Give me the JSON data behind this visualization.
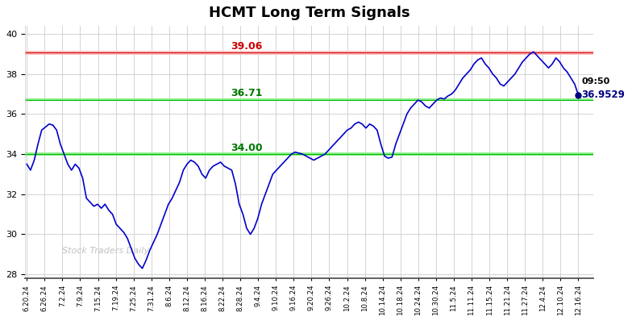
{
  "title": "HCMT Long Term Signals",
  "watermark": "Stock Traders Daily",
  "hline_red": 39.06,
  "hline_green1": 36.71,
  "hline_green2": 34.0,
  "hline_red_fill": "#ffc0c0",
  "hline_red_line": "#cc0000",
  "hline_green_fill": "#90ee90",
  "hline_green_line": "#00bb00",
  "label_red_value": "39.06",
  "label_green1_value": "36.71",
  "label_green2_value": "34.00",
  "last_time": "09:50",
  "last_price": "36.9529",
  "last_price_float": 36.9529,
  "dot_color": "#000080",
  "line_color": "#0000CC",
  "background_color": "#ffffff",
  "grid_color": "#cccccc",
  "ylim": [
    27.8,
    40.4
  ],
  "yticks": [
    28,
    30,
    32,
    34,
    36,
    38,
    40
  ],
  "x_labels": [
    "6.20.24",
    "6.26.24",
    "7.2.24",
    "7.9.24",
    "7.15.24",
    "7.19.24",
    "7.25.24",
    "7.31.24",
    "8.6.24",
    "8.12.24",
    "8.16.24",
    "8.22.24",
    "8.28.24",
    "9.4.24",
    "9.10.24",
    "9.16.24",
    "9.20.24",
    "9.26.24",
    "10.2.24",
    "10.8.24",
    "10.14.24",
    "10.18.24",
    "10.24.24",
    "10.30.24",
    "11.5.24",
    "11.11.24",
    "11.15.24",
    "11.21.24",
    "11.27.24",
    "12.4.24",
    "12.10.24",
    "12.16.24"
  ],
  "prices": [
    33.5,
    33.2,
    33.7,
    34.5,
    35.2,
    35.35,
    35.5,
    35.45,
    35.2,
    34.5,
    34.0,
    33.5,
    33.2,
    33.5,
    33.3,
    32.8,
    31.8,
    31.6,
    31.4,
    31.5,
    31.3,
    31.5,
    31.2,
    31.0,
    30.5,
    30.3,
    30.1,
    29.8,
    29.3,
    28.8,
    28.5,
    28.3,
    28.7,
    29.2,
    29.6,
    30.0,
    30.5,
    31.0,
    31.5,
    31.8,
    32.2,
    32.6,
    33.2,
    33.5,
    33.7,
    33.6,
    33.4,
    33.0,
    32.8,
    33.2,
    33.4,
    33.5,
    33.6,
    33.4,
    33.3,
    33.2,
    32.5,
    31.5,
    31.0,
    30.3,
    30.0,
    30.3,
    30.8,
    31.5,
    32.0,
    32.5,
    33.0,
    33.2,
    33.4,
    33.6,
    33.8,
    34.0,
    34.1,
    34.05,
    34.0,
    33.9,
    33.8,
    33.7,
    33.8,
    33.9,
    34.0,
    34.2,
    34.4,
    34.6,
    34.8,
    35.0,
    35.2,
    35.3,
    35.5,
    35.6,
    35.5,
    35.3,
    35.5,
    35.4,
    35.2,
    34.5,
    33.9,
    33.8,
    33.85,
    34.5,
    35.0,
    35.5,
    36.0,
    36.3,
    36.5,
    36.7,
    36.6,
    36.4,
    36.3,
    36.5,
    36.7,
    36.8,
    36.75,
    36.9,
    37.0,
    37.2,
    37.5,
    37.8,
    38.0,
    38.2,
    38.5,
    38.7,
    38.8,
    38.5,
    38.3,
    38.0,
    37.8,
    37.5,
    37.4,
    37.6,
    37.8,
    38.0,
    38.3,
    38.6,
    38.8,
    39.0,
    39.1,
    38.9,
    38.7,
    38.5,
    38.3,
    38.5,
    38.8,
    38.6,
    38.3,
    38.1,
    37.8,
    37.5,
    36.9529
  ]
}
